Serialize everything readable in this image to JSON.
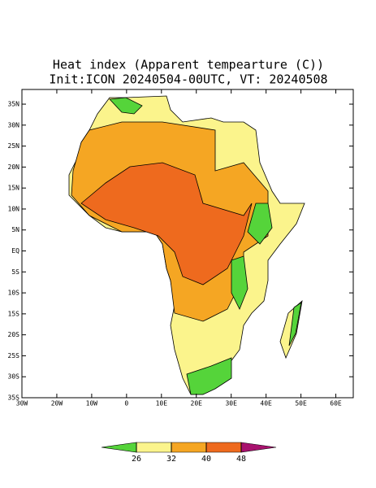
{
  "title": "Heat index (Apparent tempearture (C))",
  "subtitle": "Init:ICON 20240504-00UTC, VT: 20240508",
  "map": {
    "xlim": [
      -30,
      65
    ],
    "ylim": [
      -35,
      38.5
    ],
    "xticks": [
      {
        "value": -30,
        "label": "30W"
      },
      {
        "value": -20,
        "label": "20W"
      },
      {
        "value": -10,
        "label": "10W"
      },
      0,
      {
        "value": 10,
        "label": "10E"
      },
      {
        "value": 20,
        "label": "20E"
      },
      {
        "value": 30,
        "label": "30E"
      },
      {
        "value": 40,
        "label": "40E"
      },
      {
        "value": 50,
        "label": "50E"
      },
      {
        "value": 60,
        "label": "60E"
      }
    ],
    "yticks": [
      {
        "value": 35,
        "label": "35N"
      },
      {
        "value": 30,
        "label": "30N"
      },
      {
        "value": 25,
        "label": "25N"
      },
      {
        "value": 20,
        "label": "20N"
      },
      {
        "value": 15,
        "label": "15N"
      },
      {
        "value": 10,
        "label": "10N"
      },
      {
        "value": 5,
        "label": "5N"
      },
      {
        "value": 0,
        "label": "EQ"
      },
      {
        "value": -5,
        "label": "5S"
      },
      {
        "value": -10,
        "label": "10S"
      },
      {
        "value": -15,
        "label": "15S"
      },
      {
        "value": -20,
        "label": "20S"
      },
      {
        "value": -25,
        "label": "25S"
      },
      {
        "value": -30,
        "label": "30S"
      },
      {
        "value": -35,
        "label": "35S"
      }
    ]
  },
  "colorbar": {
    "levels": [
      26,
      32,
      40,
      48
    ],
    "colors": [
      "#55d43a",
      "#fbf48c",
      "#f5a623",
      "#ee6a1e",
      "#a8126e"
    ]
  }
}
